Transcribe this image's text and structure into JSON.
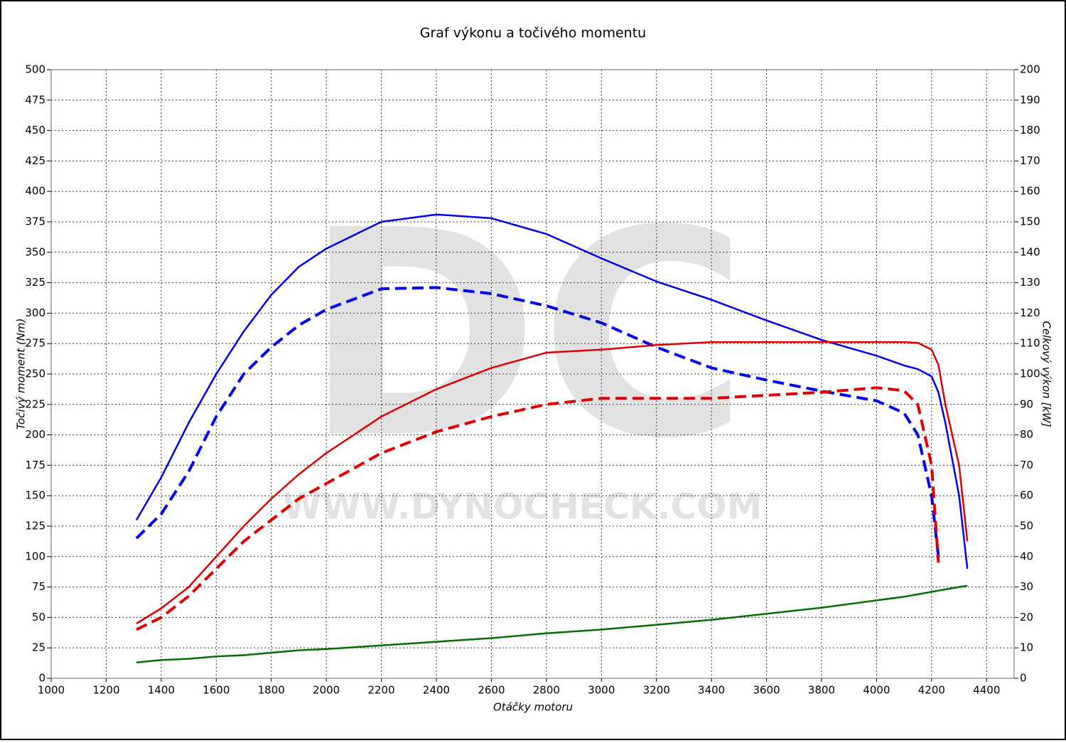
{
  "chart_data": {
    "type": "line",
    "title": "Graf výkonu a točivého momentu",
    "x_label": "Otáčky motoru",
    "y_label": "Točivý moment (Nm)",
    "y2_label": "Celkový výkon [kW]",
    "watermark": "DC",
    "watermark_url": "WWW.DYNOCHECK.COM",
    "grid": true,
    "xlim": [
      1000,
      4500
    ],
    "xticks": [
      1000,
      1200,
      1400,
      1600,
      1800,
      2000,
      2200,
      2400,
      2600,
      2800,
      3000,
      3200,
      3400,
      3600,
      3800,
      4000,
      4200,
      4400
    ],
    "ylim": [
      0,
      500
    ],
    "yticks": [
      0,
      25,
      50,
      75,
      100,
      125,
      150,
      175,
      200,
      225,
      250,
      275,
      300,
      325,
      350,
      375,
      400,
      425,
      450,
      475,
      500
    ],
    "y2lim": [
      0,
      200
    ],
    "y2ticks": [
      0,
      10,
      20,
      30,
      40,
      50,
      60,
      70,
      80,
      90,
      100,
      110,
      120,
      130,
      140,
      150,
      160,
      170,
      180,
      190,
      200
    ],
    "x": [
      1310,
      1400,
      1500,
      1600,
      1700,
      1800,
      1900,
      2000,
      2200,
      2400,
      2600,
      2800,
      3000,
      3200,
      3400,
      3600,
      3800,
      4000,
      4100,
      4150,
      4200,
      4225,
      4250,
      4300,
      4330
    ],
    "series": [
      {
        "color": "#0000ee",
        "dashed": false,
        "axis": "y",
        "values": [
          130,
          165,
          210,
          250,
          285,
          315,
          338,
          353,
          375,
          381,
          378,
          365,
          345,
          326,
          311,
          294,
          278,
          265,
          257,
          254,
          248,
          235,
          210,
          150,
          90
        ]
      },
      {
        "color": "#0000ee",
        "dashed": true,
        "axis": "y",
        "values": [
          115,
          135,
          170,
          215,
          250,
          272,
          290,
          303,
          320,
          321,
          316,
          306,
          292,
          272,
          255,
          245,
          236,
          228,
          218,
          200,
          150,
          100,
          null,
          null,
          null
        ]
      },
      {
        "color": "#e00000",
        "dashed": false,
        "axis": "y2",
        "values": [
          18,
          23,
          30,
          40,
          50,
          59,
          67,
          74,
          86,
          95,
          102,
          107,
          108,
          109.5,
          110.5,
          110.5,
          110.5,
          110.5,
          110.5,
          110.2,
          108,
          103,
          90,
          70,
          45
        ]
      },
      {
        "color": "#e00000",
        "dashed": true,
        "axis": "y2",
        "values": [
          16,
          20,
          27,
          36,
          45,
          52,
          59,
          64,
          74,
          81,
          86,
          90,
          92,
          92,
          92,
          93,
          94,
          95.5,
          94.5,
          90,
          70,
          38,
          null,
          null,
          null
        ]
      },
      {
        "color": "#007000",
        "dashed": false,
        "axis": "y",
        "values": [
          13,
          15,
          16,
          18,
          19,
          21,
          23,
          24,
          27,
          30,
          33,
          37,
          40,
          44,
          48,
          53,
          58,
          64,
          67,
          69,
          71,
          72,
          73,
          75,
          76
        ]
      }
    ]
  }
}
